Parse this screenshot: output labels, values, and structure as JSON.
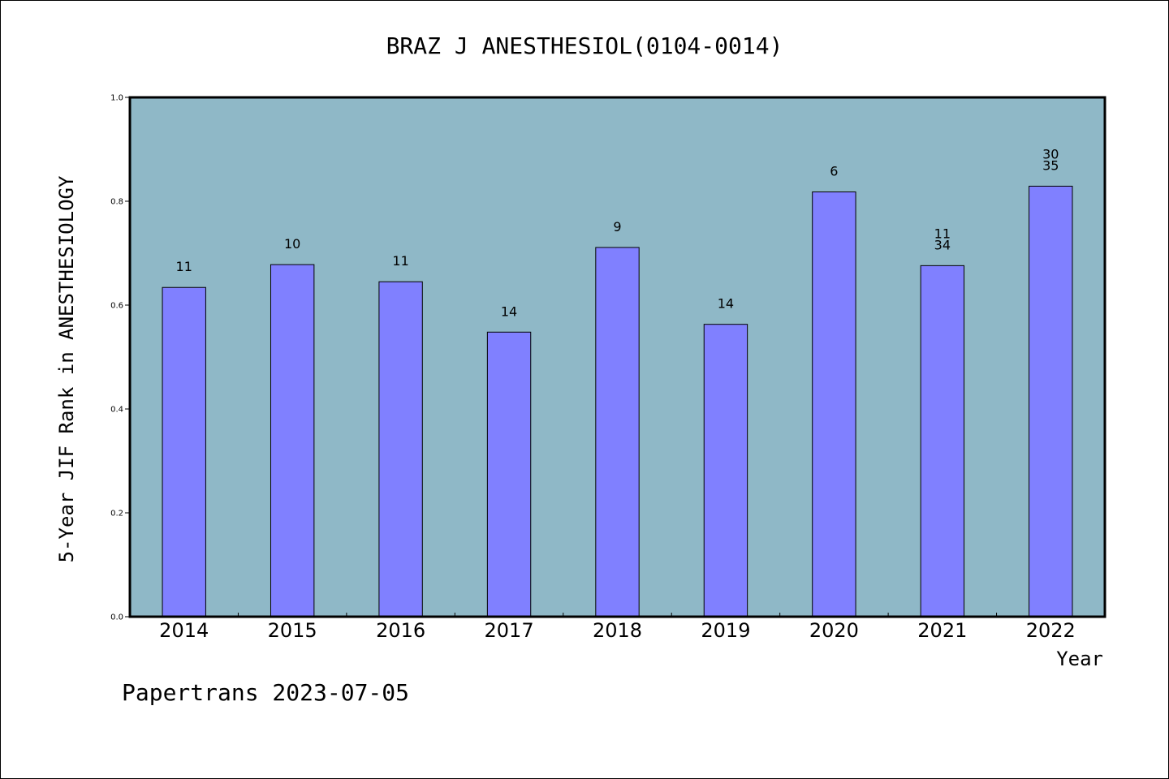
{
  "chart_data": {
    "type": "bar",
    "title": "BRAZ J ANESTHESIOL(0104-0014)",
    "xlabel": "Year",
    "ylabel": "5-Year JIF Rank in ANESTHESIOLOGY",
    "ylim": [
      0,
      1.0
    ],
    "yticks": [
      "0.0",
      "0.2",
      "0.4",
      "0.6",
      "0.8",
      "1.0"
    ],
    "categories": [
      "2014",
      "2015",
      "2016",
      "2017",
      "2018",
      "2019",
      "2020",
      "2021",
      "2022"
    ],
    "values": [
      0.634,
      0.678,
      0.645,
      0.548,
      0.711,
      0.563,
      0.818,
      0.676,
      0.829
    ],
    "labels": [
      [
        "11"
      ],
      [
        "10"
      ],
      [
        "11"
      ],
      [
        "14"
      ],
      [
        "9"
      ],
      [
        "14"
      ],
      [
        "6"
      ],
      [
        "11",
        "34"
      ],
      [
        "30",
        "35"
      ]
    ],
    "grid": false,
    "legend": "none"
  },
  "colors": {
    "plot_bg": "#8fb8c7",
    "bar": "#8080ff",
    "axis": "#000000"
  },
  "footer": "Papertrans 2023-07-05"
}
